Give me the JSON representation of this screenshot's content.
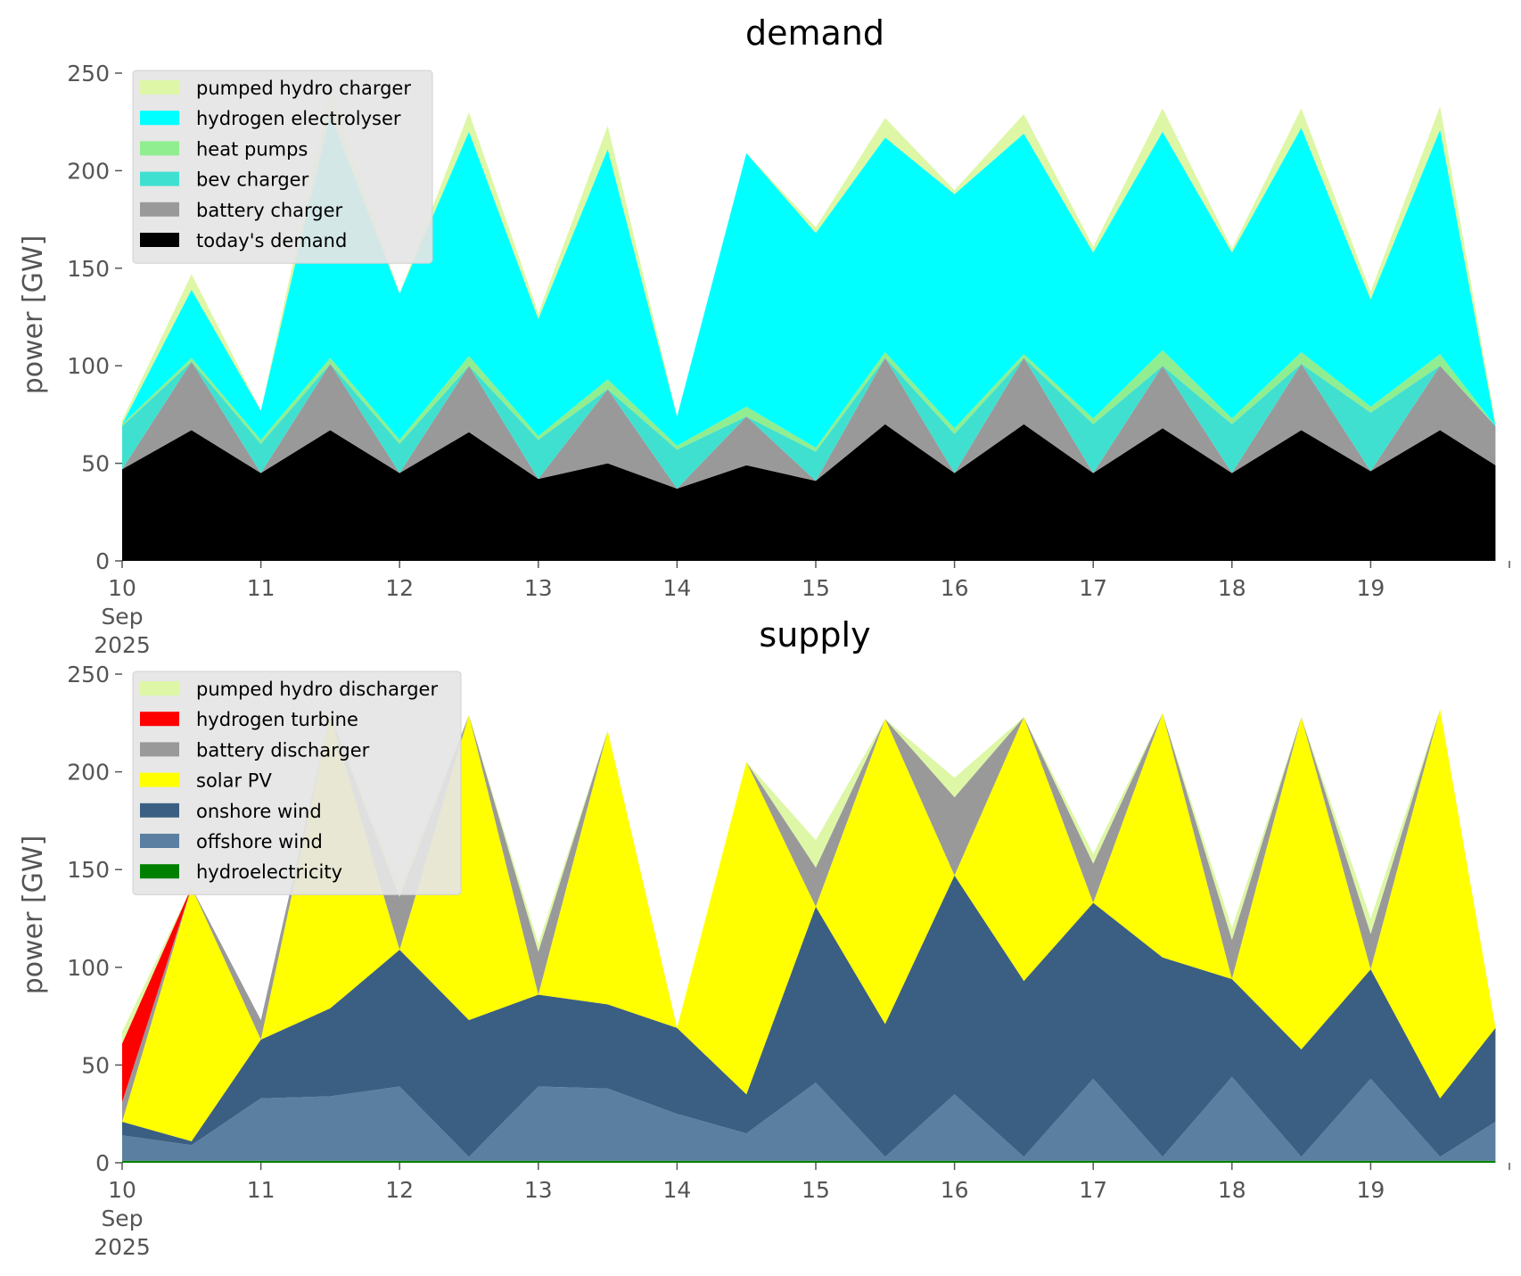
{
  "chart_data": [
    {
      "type": "area",
      "title": "demand",
      "ylabel": "power [GW]",
      "xlabel": "",
      "x_range": [
        "2025-09-10",
        "2025-09-20"
      ],
      "x_ticks": [
        "10\nSep\n2025",
        "11",
        "12",
        "13",
        "14",
        "15",
        "16",
        "17",
        "18",
        "19"
      ],
      "ylim": [
        0,
        250
      ],
      "y_ticks": [
        0,
        50,
        100,
        150,
        200,
        250
      ],
      "grid": false,
      "legend_placement": "top-left",
      "x_days": [
        10,
        10.5,
        11,
        11.5,
        12,
        12.5,
        13,
        13.5,
        14,
        14.5,
        15,
        15.5,
        16,
        16.5,
        17,
        17.5,
        18,
        18.5,
        19,
        19.5,
        19.9
      ],
      "series": [
        {
          "name": "today's demand",
          "color": "#000000",
          "values": [
            47,
            67,
            45,
            67,
            45,
            66,
            42,
            50,
            37,
            49,
            41,
            70,
            45,
            70,
            45,
            68,
            45,
            67,
            46,
            67,
            49
          ]
        },
        {
          "name": "battery charger",
          "color": "#999999",
          "values": [
            0,
            35,
            0,
            34,
            0,
            34,
            0,
            38,
            0,
            25,
            0,
            34,
            0,
            34,
            0,
            32,
            0,
            34,
            0,
            33,
            20
          ]
        },
        {
          "name": "bev charger",
          "color": "#40e0d0",
          "values": [
            22,
            0,
            15,
            0,
            15,
            0,
            20,
            0,
            20,
            0,
            15,
            0,
            20,
            0,
            25,
            0,
            25,
            0,
            30,
            0,
            0
          ]
        },
        {
          "name": "heat pumps",
          "color": "#90ee90",
          "values": [
            1,
            2,
            2,
            3,
            2,
            5,
            2,
            5,
            2,
            5,
            2,
            3,
            3,
            2,
            3,
            8,
            3,
            6,
            3,
            6,
            0
          ]
        },
        {
          "name": "hydrogen electrolyser",
          "color": "#00ffff",
          "values": [
            0,
            35,
            15,
            125,
            75,
            115,
            60,
            118,
            15,
            130,
            110,
            110,
            120,
            113,
            85,
            112,
            85,
            115,
            55,
            115,
            0
          ]
        },
        {
          "name": "pumped hydro charger",
          "color": "#ddf7a6",
          "values": [
            2,
            8,
            0,
            12,
            0,
            10,
            3,
            12,
            0,
            0,
            3,
            10,
            2,
            10,
            3,
            12,
            2,
            10,
            4,
            12,
            2
          ]
        }
      ]
    },
    {
      "type": "area",
      "title": "supply",
      "ylabel": "power [GW]",
      "xlabel": "",
      "x_range": [
        "2025-09-10",
        "2025-09-20"
      ],
      "x_ticks": [
        "10\nSep\n2025",
        "11",
        "12",
        "13",
        "14",
        "15",
        "16",
        "17",
        "18",
        "19"
      ],
      "ylim": [
        0,
        250
      ],
      "y_ticks": [
        0,
        50,
        100,
        150,
        200,
        250
      ],
      "grid": false,
      "legend_placement": "top-left",
      "x_days": [
        10,
        10.5,
        11,
        11.5,
        12,
        12.5,
        13,
        13.5,
        14,
        14.5,
        15,
        15.5,
        16,
        16.5,
        17,
        17.5,
        18,
        18.5,
        19,
        19.5,
        19.9
      ],
      "series": [
        {
          "name": "hydroelectricity",
          "color": "#008000",
          "values": [
            1,
            1,
            1,
            1,
            1,
            1,
            1,
            1,
            1,
            1,
            1,
            1,
            1,
            1,
            1,
            1,
            1,
            1,
            1,
            1,
            1
          ]
        },
        {
          "name": "offshore wind",
          "color": "#5b7fa1",
          "values": [
            13,
            8,
            32,
            33,
            38,
            2,
            38,
            37,
            24,
            14,
            40,
            2,
            34,
            2,
            42,
            2,
            43,
            2,
            42,
            2,
            20
          ]
        },
        {
          "name": "onshore wind",
          "color": "#3b5f82",
          "values": [
            7,
            2,
            30,
            45,
            70,
            70,
            47,
            43,
            44,
            20,
            90,
            68,
            112,
            90,
            90,
            102,
            50,
            55,
            56,
            30,
            48
          ]
        },
        {
          "name": "solar PV",
          "color": "#ffff00",
          "values": [
            0,
            130,
            0,
            150,
            0,
            156,
            0,
            140,
            0,
            170,
            0,
            156,
            0,
            135,
            0,
            125,
            0,
            170,
            0,
            199,
            0
          ]
        },
        {
          "name": "battery discharger",
          "color": "#999999",
          "values": [
            10,
            0,
            10,
            0,
            27,
            0,
            22,
            0,
            0,
            0,
            20,
            0,
            40,
            0,
            20,
            0,
            20,
            0,
            18,
            0,
            0
          ]
        },
        {
          "name": "hydrogen turbine",
          "color": "#ff0000",
          "values": [
            30,
            0,
            0,
            0,
            0,
            0,
            0,
            0,
            0,
            0,
            0,
            0,
            0,
            0,
            0,
            0,
            0,
            0,
            0,
            0,
            0
          ]
        },
        {
          "name": "pumped hydro discharger",
          "color": "#ddf7a6",
          "values": [
            6,
            0,
            0,
            0,
            5,
            0,
            4,
            0,
            0,
            0,
            14,
            0,
            10,
            0,
            5,
            0,
            6,
            0,
            8,
            0,
            0
          ]
        }
      ]
    }
  ]
}
